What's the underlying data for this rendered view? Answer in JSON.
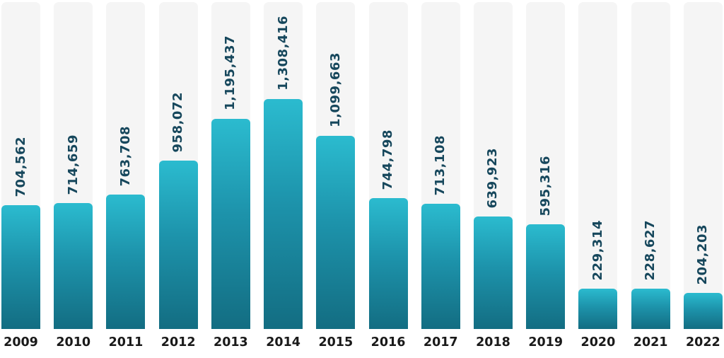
{
  "chart_data": {
    "type": "bar",
    "title": "",
    "xlabel": "",
    "ylabel": "",
    "categories": [
      "2009",
      "2010",
      "2011",
      "2012",
      "2013",
      "2014",
      "2015",
      "2016",
      "2017",
      "2018",
      "2019",
      "2020",
      "2021",
      "2022"
    ],
    "values": [
      704562,
      714659,
      763708,
      958072,
      1195437,
      1308416,
      1099663,
      744798,
      713108,
      639923,
      595316,
      229314,
      228627,
      204203
    ],
    "value_labels": [
      "704,562",
      "714,659",
      "763,708",
      "958,072",
      "1,195,437",
      "1,308,416",
      "1,099,663",
      "744,798",
      "713,108",
      "639,923",
      "595,316",
      "229,314",
      "228,627",
      "204,203"
    ],
    "ylim": [
      0,
      1848000
    ],
    "grid": false,
    "legend": "none",
    "colors": {
      "bar_gradient_top": "#2bbbcf",
      "bar_gradient_bottom": "#136d82",
      "track_background": "#f5f5f5",
      "value_label_text": "#16475c",
      "year_label_text": "#191919"
    }
  }
}
